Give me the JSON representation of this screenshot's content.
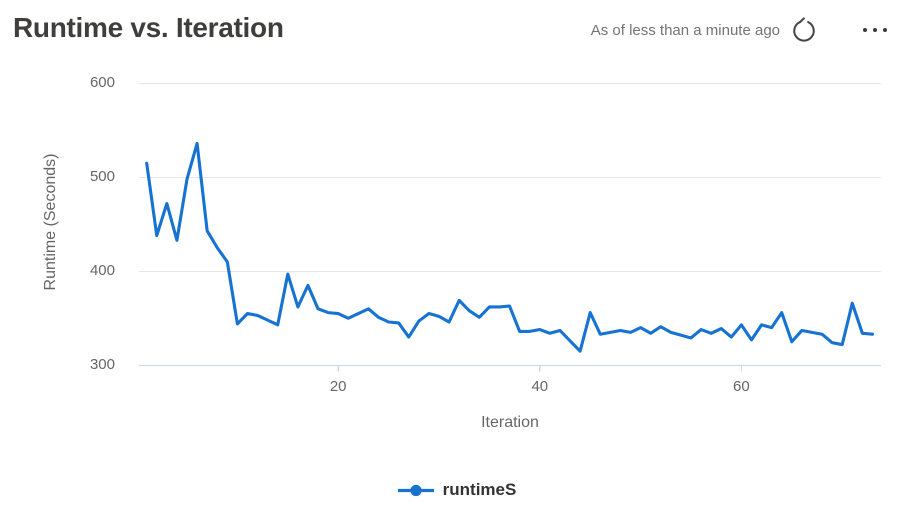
{
  "header": {
    "title": "Runtime vs. Iteration",
    "freshness": "As of less than a minute ago"
  },
  "chart_data": {
    "type": "line",
    "title": "Runtime vs. Iteration",
    "xlabel": "Iteration",
    "ylabel": "Runtime (Seconds)",
    "x_ticks": [
      20,
      40,
      60
    ],
    "y_ticks": [
      300,
      400,
      500,
      600
    ],
    "ylim": [
      300,
      600
    ],
    "x_range": [
      1,
      73
    ],
    "grid": "horizontal",
    "legend_position": "bottom-center",
    "series": [
      {
        "name": "runtimeS",
        "color": "#1673d2",
        "x_start": 1,
        "x_step": 1,
        "values": [
          515,
          438,
          472,
          433,
          498,
          536,
          443,
          425,
          410,
          344,
          355,
          353,
          348,
          343,
          397,
          362,
          385,
          360,
          356,
          355,
          350,
          355,
          360,
          351,
          346,
          345,
          330,
          347,
          355,
          352,
          346,
          369,
          358,
          351,
          362,
          362,
          363,
          336,
          336,
          338,
          334,
          337,
          326,
          315,
          356,
          333,
          335,
          337,
          335,
          340,
          334,
          341,
          335,
          332,
          329,
          338,
          334,
          339,
          330,
          343,
          327,
          343,
          340,
          356,
          325,
          337,
          335,
          333,
          324,
          322,
          366,
          334,
          333
        ]
      }
    ]
  },
  "legend": {
    "items": [
      {
        "label": "runtimeS",
        "color": "#1673d2"
      }
    ]
  },
  "colors": {
    "series_blue": "#1673d2",
    "gridline": "#e6e6e6",
    "axis_line": "#ccd6eb",
    "tick_label": "#666666",
    "title_text": "#3f3e3c",
    "freshness_text": "#767472",
    "legend_text": "#333333",
    "icon": "#484644"
  }
}
